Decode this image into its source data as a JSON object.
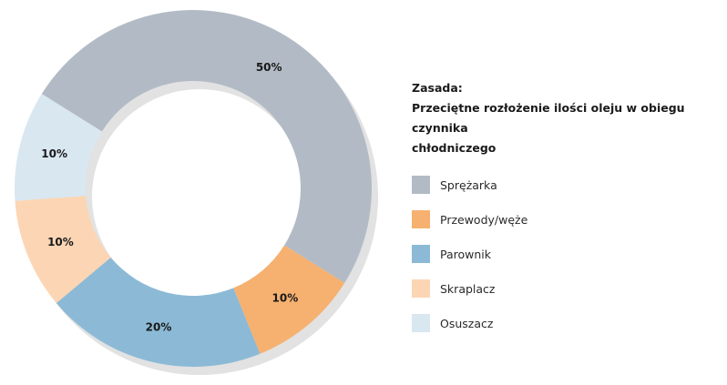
{
  "chart_data": {
    "type": "pie",
    "variant": "donut",
    "title_lines": [
      "Zasada:",
      "Przeciętne rozłożenie ilości oleju w obiegu czynnika",
      "chłodniczego"
    ],
    "categories": [
      "Sprężarka",
      "Przewody/węże",
      "Parownik",
      "Skraplacz",
      "Osuszacz"
    ],
    "values": [
      50,
      10,
      20,
      10,
      10
    ],
    "value_labels": [
      "50%",
      "10%",
      "20%",
      "10%",
      "10%"
    ],
    "colors": [
      "#b2bbc5",
      "#f6b170",
      "#8cbad6",
      "#fcd6b4",
      "#d9e7f1"
    ],
    "legend_placement": "right"
  }
}
